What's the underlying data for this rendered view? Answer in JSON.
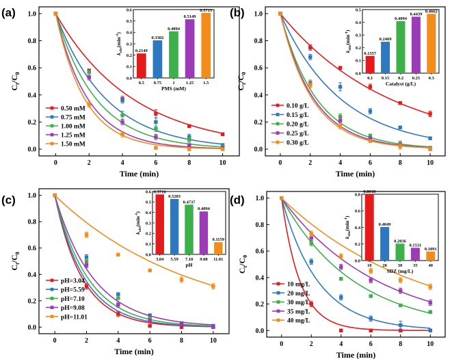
{
  "figure": {
    "colors": [
      "#e41a1c",
      "#2e78c0",
      "#3db049",
      "#9b3bb5",
      "#f28c1b"
    ]
  },
  "chart_data": [
    {
      "panel": "(a)",
      "type": "line",
      "xlabel": "Time (min)",
      "ylabel": "Ct/C0",
      "ylabel_main": "C",
      "ylabel_sub1": "t",
      "ylabel_mid": "/C",
      "ylabel_sub2": "0",
      "xlim": [
        -1,
        11
      ],
      "ylim": [
        -0.05,
        1.05
      ],
      "xticks": [
        "0",
        "2",
        "4",
        "6",
        "8",
        "10"
      ],
      "xtick_values": [
        0,
        2,
        4,
        6,
        8,
        10
      ],
      "yticks": [
        "0.0",
        "0.2",
        "0.4",
        "0.6",
        "0.8",
        "1.0"
      ],
      "ytick_values": [
        0,
        0.2,
        0.4,
        0.6,
        0.8,
        1.0
      ],
      "x": [
        0,
        2,
        4,
        6,
        8,
        10
      ],
      "series": [
        {
          "name": "0.50 mM",
          "values": [
            1.0,
            0.58,
            0.37,
            0.26,
            0.17,
            0.11
          ],
          "errors": [
            0,
            0.01,
            0.02,
            0.03,
            0.01,
            0.01
          ],
          "k": 0.2149
        },
        {
          "name": "0.75 mM",
          "values": [
            1.0,
            0.57,
            0.36,
            0.2,
            0.09,
            0.03
          ],
          "errors": [
            0,
            0.01,
            0.02,
            0.05,
            0.02,
            0.01
          ],
          "k": 0.3302
        },
        {
          "name": "1.00 mM",
          "values": [
            1.0,
            0.57,
            0.25,
            0.15,
            0.07,
            0.02
          ],
          "errors": [
            0,
            0.01,
            0.03,
            0.02,
            0.02,
            0.01
          ],
          "k": 0.4094
        },
        {
          "name": "1.25 mM",
          "values": [
            1.0,
            0.53,
            0.2,
            0.09,
            0.03,
            0.01
          ],
          "errors": [
            0,
            0.02,
            0.02,
            0.02,
            0.01,
            0.01
          ],
          "k": 0.5149
        },
        {
          "name": "1.50 mM",
          "values": [
            1.0,
            0.33,
            0.11,
            0.01,
            0.0,
            0.0
          ],
          "errors": [
            0,
            0.02,
            0.02,
            0.01,
            0.01,
            0.0
          ],
          "k": 0.5713
        }
      ],
      "legend_position": "left-bottom",
      "inset": {
        "type": "bar",
        "categories": [
          "0.5",
          "0.75",
          "1",
          "1.25",
          "1.5"
        ],
        "values": [
          0.2149,
          0.3302,
          0.4094,
          0.5149,
          0.5713
        ],
        "value_labels": [
          "0.2149",
          "0.3302",
          "0.4094",
          "0.5149",
          "0.5713"
        ],
        "xlabel": "PMS (mM)",
        "ylabel": "kobs (min-1)",
        "ylabel_main": "k",
        "ylabel_sub": "obs",
        "ylabel_rest": "(min",
        "ylabel_sup": "-1",
        "ylabel_end": ")",
        "ylim": [
          0,
          0.6
        ],
        "yticks": [
          "0.0",
          "0.1",
          "0.2",
          "0.3",
          "0.4",
          "0.5",
          "0.6"
        ],
        "ytick_values": [
          0,
          0.1,
          0.2,
          0.3,
          0.4,
          0.5,
          0.6
        ]
      }
    },
    {
      "panel": "(b)",
      "type": "line",
      "xlabel": "Time (min)",
      "ylabel": "Ct/C0",
      "ylabel_main": "C",
      "ylabel_sub1": "t",
      "ylabel_mid": "/C",
      "ylabel_sub2": "0",
      "xlim": [
        -1,
        11
      ],
      "ylim": [
        -0.05,
        1.05
      ],
      "xticks": [
        "0",
        "2",
        "4",
        "6",
        "8",
        "10"
      ],
      "xtick_values": [
        0,
        2,
        4,
        6,
        8,
        10
      ],
      "yticks": [
        "0.0",
        "0.2",
        "0.4",
        "0.6",
        "0.8",
        "1.0"
      ],
      "ytick_values": [
        0,
        0.2,
        0.4,
        0.6,
        0.8,
        1.0
      ],
      "x": [
        0,
        2,
        4,
        6,
        8,
        10
      ],
      "series": [
        {
          "name": "0.10 g/L",
          "values": [
            1.0,
            0.75,
            0.6,
            0.46,
            0.34,
            0.26
          ],
          "errors": [
            0,
            0.02,
            0.01,
            0.02,
            0.01,
            0.02
          ],
          "k": 0.1357
        },
        {
          "name": "0.15 g/L",
          "values": [
            1.0,
            0.68,
            0.46,
            0.28,
            0.16,
            0.08
          ],
          "errors": [
            0,
            0.02,
            0.03,
            0.02,
            0.01,
            0.01
          ],
          "k": 0.2469
        },
        {
          "name": "0.20 g/L",
          "values": [
            1.0,
            0.49,
            0.24,
            0.1,
            0.04,
            0.01
          ],
          "errors": [
            0,
            0.02,
            0.02,
            0.01,
            0.02,
            0.01
          ],
          "k": 0.4094
        },
        {
          "name": "0.25 g/L",
          "values": [
            1.0,
            0.48,
            0.21,
            0.08,
            0.03,
            0.0
          ],
          "errors": [
            0,
            0.02,
            0.02,
            0.01,
            0.02,
            0.01
          ],
          "k": 0.4439
        },
        {
          "name": "0.30 g/L",
          "values": [
            1.0,
            0.47,
            0.17,
            0.06,
            0.02,
            0.0
          ],
          "errors": [
            0,
            0.02,
            0.02,
            0.01,
            0.02,
            0.01
          ],
          "k": 0.4662
        }
      ],
      "legend_position": "left-bottom",
      "inset": {
        "type": "bar",
        "categories": [
          "0.1",
          "0.15",
          "0.2",
          "0.25",
          "0.3"
        ],
        "values": [
          0.1357,
          0.2469,
          0.4094,
          0.4439,
          0.4662
        ],
        "value_labels": [
          "0.1357",
          "0.2469",
          "0.4094",
          "0.4439",
          "0.4662"
        ],
        "xlabel": "Catalyst (g/L)",
        "ylabel": "kobs (min-1)",
        "ylabel_main": "k",
        "ylabel_sub": "obs",
        "ylabel_rest": "(min",
        "ylabel_sup": "-1",
        "ylabel_end": ")",
        "ylim": [
          0,
          0.5
        ],
        "yticks": [
          "0.0",
          "0.1",
          "0.2",
          "0.3",
          "0.4",
          "0.5"
        ],
        "ytick_values": [
          0,
          0.1,
          0.2,
          0.3,
          0.4,
          0.5
        ]
      }
    },
    {
      "panel": "(c)",
      "type": "line",
      "xlabel": "Time (min)",
      "ylabel": "Ct/C0",
      "ylabel_main": "C",
      "ylabel_sub1": "t",
      "ylabel_mid": "/C",
      "ylabel_sub2": "0",
      "xlim": [
        -1,
        11
      ],
      "ylim": [
        -0.05,
        1.05
      ],
      "xticks": [
        "0",
        "2",
        "4",
        "6",
        "8",
        "10"
      ],
      "xtick_values": [
        0,
        2,
        4,
        6,
        8,
        10
      ],
      "yticks": [
        "0.0",
        "0.2",
        "0.4",
        "0.6",
        "0.8",
        "1.0"
      ],
      "ytick_values": [
        0,
        0.2,
        0.4,
        0.6,
        0.8,
        1.0
      ],
      "x": [
        0,
        2,
        4,
        6,
        8,
        10
      ],
      "series": [
        {
          "name": "pH=3.04",
          "values": [
            1.0,
            0.31,
            0.1,
            0.01,
            0.0,
            0.0
          ],
          "errors": [
            0,
            0.02,
            0.02,
            0.01,
            0.0,
            0.0
          ],
          "k": 0.5716
        },
        {
          "name": "pH=5.59",
          "values": [
            1.0,
            0.53,
            0.25,
            0.09,
            0.03,
            0.01
          ],
          "errors": [
            0,
            0.02,
            0.01,
            0.01,
            0.01,
            0.0
          ],
          "k": 0.5283
        },
        {
          "name": "pH=7.10",
          "values": [
            1.0,
            0.5,
            0.22,
            0.07,
            0.03,
            0.0
          ],
          "errors": [
            0,
            0.02,
            0.01,
            0.01,
            0.01,
            0.0
          ],
          "k": 0.4737
        },
        {
          "name": "pH=9.08",
          "values": [
            1.0,
            0.47,
            0.17,
            0.05,
            0.02,
            0.0
          ],
          "errors": [
            0,
            0.02,
            0.02,
            0.01,
            0.01,
            0.0
          ],
          "k": 0.4094
        },
        {
          "name": "pH=11.01",
          "values": [
            1.0,
            0.7,
            0.55,
            0.43,
            0.36,
            0.31
          ],
          "errors": [
            0,
            0.02,
            0.01,
            0.01,
            0.02,
            0.02
          ],
          "k": 0.1159
        }
      ],
      "legend_position": "left-bottom",
      "inset": {
        "type": "bar",
        "categories": [
          "3.04",
          "5.59",
          "7.10",
          "9.08",
          "11.01"
        ],
        "values": [
          0.5716,
          0.5283,
          0.4737,
          0.4094,
          0.1159
        ],
        "value_labels": [
          "0.5716",
          "0.5283",
          "0.4737",
          "0.4094",
          "0.1159"
        ],
        "xlabel": "pH",
        "ylabel": "kobs (min-1)",
        "ylabel_main": "k",
        "ylabel_sub": "obs",
        "ylabel_rest": "(min",
        "ylabel_sup": "-1",
        "ylabel_end": ")",
        "ylim": [
          0,
          0.6
        ],
        "yticks": [
          "0.0",
          "0.1",
          "0.2",
          "0.3",
          "0.4",
          "0.5",
          "0.6"
        ],
        "ytick_values": [
          0,
          0.1,
          0.2,
          0.3,
          0.4,
          0.5,
          0.6
        ]
      }
    },
    {
      "panel": "(d)",
      "type": "line",
      "xlabel": "Time (min)",
      "ylabel": "Ct/C0",
      "ylabel_main": "C",
      "ylabel_sub1": "t",
      "ylabel_mid": "/C",
      "ylabel_sub2": "0",
      "xlim": [
        -1,
        11
      ],
      "ylim": [
        -0.05,
        1.05
      ],
      "xticks": [
        "0",
        "2",
        "4",
        "6",
        "8",
        "10"
      ],
      "xtick_values": [
        0,
        2,
        4,
        6,
        8,
        10
      ],
      "yticks": [
        "0.0",
        "0.2",
        "0.4",
        "0.6",
        "0.8",
        "1.0"
      ],
      "ytick_values": [
        0,
        0.2,
        0.4,
        0.6,
        0.8,
        1.0
      ],
      "x": [
        0,
        2,
        4,
        6,
        8,
        10
      ],
      "series": [
        {
          "name": "10 mg/L",
          "values": [
            1.0,
            0.2,
            0.0,
            0.0,
            0.0,
            0.0
          ],
          "errors": [
            0,
            0.02,
            0.01,
            0.0,
            0.0,
            0.0
          ],
          "k": 0.8018
        },
        {
          "name": "20 mg/L",
          "values": [
            1.0,
            0.52,
            0.25,
            0.09,
            0.04,
            0.0
          ],
          "errors": [
            0,
            0.02,
            0.02,
            0.02,
            0.03,
            0.0
          ],
          "k": 0.4049
        },
        {
          "name": "30 mg/L",
          "values": [
            1.0,
            0.66,
            0.39,
            0.26,
            0.19,
            0.14
          ],
          "errors": [
            0,
            0.02,
            0.01,
            0.01,
            0.01,
            0.01
          ],
          "k": 0.2036
        },
        {
          "name": "35 mg/L",
          "values": [
            1.0,
            0.7,
            0.48,
            0.38,
            0.3,
            0.21
          ],
          "errors": [
            0,
            0.02,
            0.02,
            0.02,
            0.02,
            0.02
          ],
          "k": 0.1531
        },
        {
          "name": "40 mg/L",
          "values": [
            1.0,
            0.73,
            0.56,
            0.45,
            0.38,
            0.33
          ],
          "errors": [
            0,
            0.02,
            0.02,
            0.02,
            0.02,
            0.02
          ],
          "k": 0.1091
        }
      ],
      "legend_position": "left-bottom",
      "inset": {
        "type": "bar",
        "categories": [
          "10",
          "20",
          "30",
          "35",
          "40"
        ],
        "values": [
          0.8018,
          0.4049,
          0.2036,
          0.1531,
          0.1091
        ],
        "value_labels": [
          "0.8018",
          "0.4049",
          "0.2036",
          "0.1531",
          "0.1091"
        ],
        "xlabel": "SDZ (mg/L)",
        "ylabel": "kobs (min-1)",
        "ylabel_main": "k",
        "ylabel_sub": "obs",
        "ylabel_rest": "(min",
        "ylabel_sup": "-1",
        "ylabel_end": ")",
        "ylim": [
          0,
          0.8
        ],
        "yticks": [
          "0.0",
          "0.2",
          "0.4",
          "0.6",
          "0.8"
        ],
        "ytick_values": [
          0,
          0.2,
          0.4,
          0.6,
          0.8
        ]
      }
    }
  ]
}
